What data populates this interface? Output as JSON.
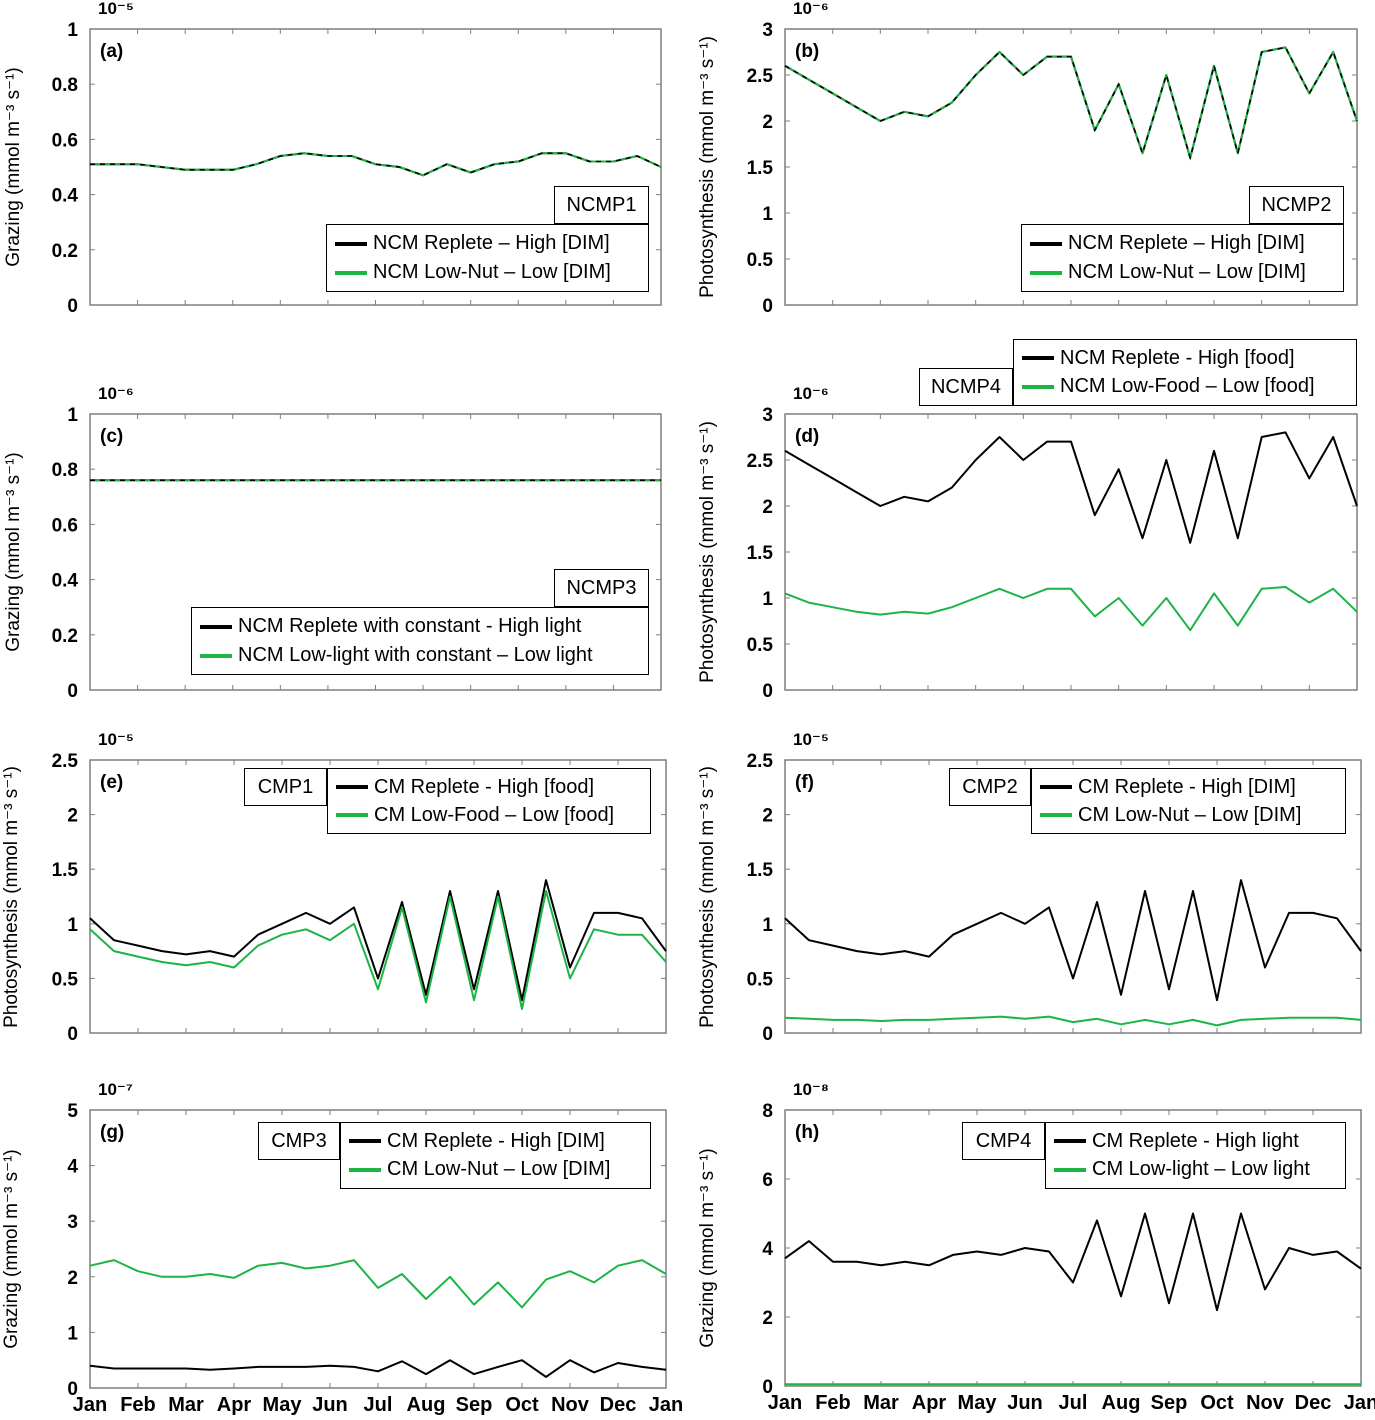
{
  "colors": {
    "black": "#000000",
    "green": "#1db446"
  },
  "chart_data": [
    {
      "id": "a",
      "type": "line",
      "panel_label": "(a)",
      "multiplier": "10⁻⁵",
      "ylabel": "Grazing (mmol m⁻³ s⁻¹)",
      "ylim": [
        0,
        1
      ],
      "yticks": [
        "0",
        "0.2",
        "0.4",
        "0.6",
        "0.8",
        "1"
      ],
      "tag": "NCMP1",
      "x": [
        "Jan 1",
        "Jan 16",
        "Feb 1",
        "Feb 15",
        "Mar 1",
        "Mar 16",
        "Apr 1",
        "Apr 16",
        "May 1",
        "May 16",
        "Jun 1",
        "Jun 16",
        "Jul 1",
        "Jul 16",
        "Aug 1",
        "Aug 16",
        "Sep 1",
        "Sep 16",
        "Oct 1",
        "Oct 16",
        "Nov 1",
        "Nov 16",
        "Dec 1",
        "Dec 16",
        "Jan 1"
      ],
      "series": [
        {
          "name": "NCM Replete – High [DIM]",
          "color": "black",
          "dashed": true,
          "values": [
            0.51,
            0.51,
            0.51,
            0.5,
            0.49,
            0.49,
            0.49,
            0.51,
            0.54,
            0.55,
            0.54,
            0.54,
            0.51,
            0.5,
            0.47,
            0.51,
            0.48,
            0.51,
            0.52,
            0.55,
            0.55,
            0.52,
            0.52,
            0.54,
            0.5
          ]
        },
        {
          "name": "NCM Low-Nut – Low [DIM]",
          "color": "green",
          "values": [
            0.51,
            0.51,
            0.51,
            0.5,
            0.49,
            0.49,
            0.49,
            0.51,
            0.54,
            0.55,
            0.54,
            0.54,
            0.51,
            0.5,
            0.47,
            0.51,
            0.48,
            0.51,
            0.52,
            0.55,
            0.55,
            0.52,
            0.52,
            0.54,
            0.5
          ]
        }
      ]
    },
    {
      "id": "b",
      "type": "line",
      "panel_label": "(b)",
      "multiplier": "10⁻⁶",
      "ylabel": "Photosynthesis (mmol m⁻³ s⁻¹)",
      "ylim": [
        0,
        3
      ],
      "yticks": [
        "0",
        "0.5",
        "1",
        "1.5",
        "2",
        "2.5",
        "3"
      ],
      "tag": "NCMP2",
      "series": [
        {
          "name": "NCM Replete – High [DIM]",
          "color": "black",
          "dashed": true,
          "values": [
            2.6,
            2.45,
            2.3,
            2.15,
            2.0,
            2.1,
            2.05,
            2.2,
            2.5,
            2.75,
            2.5,
            2.7,
            2.7,
            1.9,
            2.4,
            1.65,
            2.5,
            1.6,
            2.6,
            1.65,
            2.75,
            2.8,
            2.3,
            2.75,
            2.0
          ]
        },
        {
          "name": "NCM Low-Nut – Low [DIM]",
          "color": "green",
          "values": [
            2.6,
            2.45,
            2.3,
            2.15,
            2.0,
            2.1,
            2.05,
            2.2,
            2.5,
            2.75,
            2.5,
            2.7,
            2.7,
            1.9,
            2.4,
            1.65,
            2.5,
            1.6,
            2.6,
            1.65,
            2.75,
            2.8,
            2.3,
            2.75,
            2.0
          ]
        }
      ]
    },
    {
      "id": "c",
      "type": "line",
      "panel_label": "(c)",
      "multiplier": "10⁻⁶",
      "ylabel": "Grazing (mmol m⁻³ s⁻¹)",
      "ylim": [
        0,
        1
      ],
      "yticks": [
        "0",
        "0.2",
        "0.4",
        "0.6",
        "0.8",
        "1"
      ],
      "tag": "NCMP3",
      "series": [
        {
          "name": "NCM Replete with constant - High light",
          "color": "black",
          "dashed": true,
          "values": [
            0.76,
            0.76,
            0.76,
            0.76,
            0.76,
            0.76,
            0.76,
            0.76,
            0.76,
            0.76,
            0.76,
            0.76,
            0.76,
            0.76,
            0.76,
            0.76,
            0.76,
            0.76,
            0.76,
            0.76,
            0.76,
            0.76,
            0.76,
            0.76,
            0.76
          ]
        },
        {
          "name": "NCM Low-light with constant – Low light",
          "color": "green",
          "values": [
            0.76,
            0.76,
            0.76,
            0.76,
            0.76,
            0.76,
            0.76,
            0.76,
            0.76,
            0.76,
            0.76,
            0.76,
            0.76,
            0.76,
            0.76,
            0.76,
            0.76,
            0.76,
            0.76,
            0.76,
            0.76,
            0.76,
            0.76,
            0.76,
            0.76
          ]
        }
      ]
    },
    {
      "id": "d",
      "type": "line",
      "panel_label": "(d)",
      "multiplier": "10⁻⁶",
      "ylabel": "Photosynthesis (mmol m⁻³ s⁻¹)",
      "ylim": [
        0,
        3
      ],
      "yticks": [
        "0",
        "0.5",
        "1",
        "1.5",
        "2",
        "2.5",
        "3"
      ],
      "tag": "NCMP4",
      "series": [
        {
          "name": "NCM Replete - High [food]",
          "color": "black",
          "values": [
            2.6,
            2.45,
            2.3,
            2.15,
            2.0,
            2.1,
            2.05,
            2.2,
            2.5,
            2.75,
            2.5,
            2.7,
            2.7,
            1.9,
            2.4,
            1.65,
            2.5,
            1.6,
            2.6,
            1.65,
            2.75,
            2.8,
            2.3,
            2.75,
            2.0
          ]
        },
        {
          "name": "NCM Low-Food – Low [food]",
          "color": "green",
          "values": [
            1.05,
            0.95,
            0.9,
            0.85,
            0.82,
            0.85,
            0.83,
            0.9,
            1.0,
            1.1,
            1.0,
            1.1,
            1.1,
            0.8,
            1.0,
            0.7,
            1.0,
            0.65,
            1.05,
            0.7,
            1.1,
            1.12,
            0.95,
            1.1,
            0.85
          ]
        }
      ]
    },
    {
      "id": "e",
      "type": "line",
      "panel_label": "(e)",
      "multiplier": "10⁻⁵",
      "ylabel": "Photosynthesis (mmol m⁻³ s⁻¹)",
      "ylim": [
        0,
        2.5
      ],
      "yticks": [
        "0",
        "0.5",
        "1",
        "1.5",
        "2",
        "2.5"
      ],
      "tag": "CMP1",
      "series": [
        {
          "name": "CM Replete - High [food]",
          "color": "black",
          "values": [
            1.05,
            0.85,
            0.8,
            0.75,
            0.72,
            0.75,
            0.7,
            0.9,
            1.0,
            1.1,
            1.0,
            1.15,
            0.5,
            1.2,
            0.35,
            1.3,
            0.4,
            1.3,
            0.3,
            1.4,
            0.6,
            1.1,
            1.1,
            1.05,
            0.75
          ]
        },
        {
          "name": "CM Low-Food – Low [food]",
          "color": "green",
          "values": [
            0.95,
            0.75,
            0.7,
            0.65,
            0.62,
            0.65,
            0.6,
            0.8,
            0.9,
            0.95,
            0.85,
            1.0,
            0.4,
            1.15,
            0.28,
            1.25,
            0.3,
            1.25,
            0.22,
            1.3,
            0.5,
            0.95,
            0.9,
            0.9,
            0.65
          ]
        }
      ]
    },
    {
      "id": "f",
      "type": "line",
      "panel_label": "(f)",
      "multiplier": "10⁻⁵",
      "ylabel": "Photosynthesis (mmol m⁻³ s⁻¹)",
      "ylim": [
        0,
        2.5
      ],
      "yticks": [
        "0",
        "0.5",
        "1",
        "1.5",
        "2",
        "2.5"
      ],
      "tag": "CMP2",
      "series": [
        {
          "name": "CM Replete - High [DIM]",
          "color": "black",
          "values": [
            1.05,
            0.85,
            0.8,
            0.75,
            0.72,
            0.75,
            0.7,
            0.9,
            1.0,
            1.1,
            1.0,
            1.15,
            0.5,
            1.2,
            0.35,
            1.3,
            0.4,
            1.3,
            0.3,
            1.4,
            0.6,
            1.1,
            1.1,
            1.05,
            0.75
          ]
        },
        {
          "name": "CM Low-Nut – Low [DIM]",
          "color": "green",
          "values": [
            0.14,
            0.13,
            0.12,
            0.12,
            0.11,
            0.12,
            0.12,
            0.13,
            0.14,
            0.15,
            0.13,
            0.15,
            0.1,
            0.13,
            0.08,
            0.12,
            0.08,
            0.12,
            0.07,
            0.12,
            0.13,
            0.14,
            0.14,
            0.14,
            0.12
          ]
        }
      ]
    },
    {
      "id": "g",
      "type": "line",
      "panel_label": "(g)",
      "multiplier": "10⁻⁷",
      "ylabel": "Grazing (mmol m⁻³ s⁻¹)",
      "ylim": [
        0,
        5
      ],
      "yticks": [
        "0",
        "1",
        "2",
        "3",
        "4",
        "5"
      ],
      "tag": "CMP3",
      "series": [
        {
          "name": "CM Replete - High [DIM]",
          "color": "black",
          "values": [
            0.4,
            0.35,
            0.35,
            0.35,
            0.35,
            0.33,
            0.35,
            0.38,
            0.38,
            0.38,
            0.4,
            0.38,
            0.3,
            0.48,
            0.25,
            0.5,
            0.25,
            0.38,
            0.5,
            0.2,
            0.5,
            0.28,
            0.45,
            0.38,
            0.33
          ]
        },
        {
          "name": "CM Low-Nut – Low [DIM]",
          "color": "green",
          "values": [
            2.2,
            2.3,
            2.1,
            2.0,
            2.0,
            2.05,
            1.98,
            2.2,
            2.25,
            2.15,
            2.2,
            2.3,
            1.8,
            2.05,
            1.6,
            2.0,
            1.5,
            1.9,
            1.45,
            1.95,
            2.1,
            1.9,
            2.2,
            2.3,
            2.05
          ]
        }
      ]
    },
    {
      "id": "h",
      "type": "line",
      "panel_label": "(h)",
      "multiplier": "10⁻⁸",
      "ylabel": "Grazing (mmol m⁻³ s⁻¹)",
      "ylim": [
        0,
        8
      ],
      "yticks": [
        "0",
        "2",
        "4",
        "6",
        "8"
      ],
      "tag": "CMP4",
      "series": [
        {
          "name": "CM Replete - High light",
          "color": "black",
          "values": [
            3.7,
            4.2,
            3.6,
            3.6,
            3.5,
            3.6,
            3.5,
            3.8,
            3.9,
            3.8,
            4.0,
            3.9,
            3.0,
            4.8,
            2.6,
            5.0,
            2.4,
            5.0,
            2.2,
            5.0,
            2.8,
            4.0,
            3.8,
            3.9,
            3.4
          ]
        },
        {
          "name": "CM Low-light – Low light",
          "color": "green",
          "values": [
            0.05,
            0.05,
            0.05,
            0.05,
            0.05,
            0.05,
            0.05,
            0.05,
            0.05,
            0.05,
            0.05,
            0.05,
            0.05,
            0.05,
            0.05,
            0.05,
            0.05,
            0.05,
            0.05,
            0.05,
            0.05,
            0.05,
            0.05,
            0.05,
            0.05
          ]
        }
      ]
    }
  ],
  "x_tick_labels": [
    "Jan",
    "Feb",
    "Mar",
    "Apr",
    "May",
    "Jun",
    "Jul",
    "Aug",
    "Sep",
    "Oct",
    "Nov",
    "Dec",
    "Jan"
  ]
}
